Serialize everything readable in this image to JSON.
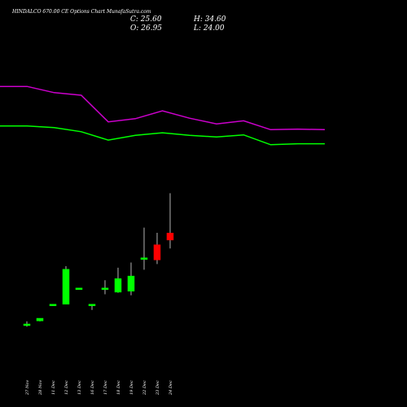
{
  "header": {
    "title": "HINDALCO 670.00  CE Options  Chart MunafaSutra.com",
    "close": "C: 25.60",
    "high": "H: 34.60",
    "open": "O: 26.95",
    "low": "L: 24.00"
  },
  "colors": {
    "background": "#000000",
    "up": "#00ff00",
    "down": "#ff0000",
    "upper_line": "#00ff00",
    "lower_line": "#cc00cc",
    "text": "#ffffff",
    "wick": "#ffffff"
  },
  "chart_data": [
    {
      "type": "line",
      "series": [
        {
          "values": [
            47.5,
            47.5,
            47.2,
            46.4,
            44.8,
            45.7,
            46.2,
            45.7,
            45.4,
            45.8,
            43.9,
            44.1,
            44.1
          ]
        },
        {
          "values": [
            55.1,
            55.1,
            53.9,
            53.4,
            48.3,
            48.9,
            50.4,
            49.0,
            47.9,
            48.5,
            46.8,
            46.9,
            46.8
          ]
        }
      ]
    },
    {
      "type": "candlestick",
      "categories": [
        "27 Nov",
        "28 Nov",
        "11 Dec",
        "12 Dec",
        "13 Dec",
        "16 Dec",
        "17 Dec",
        "18 Dec",
        "19 Dec",
        "22 Dec",
        "23 Dec",
        "24 Dec"
      ],
      "open": [
        9.5,
        10.1,
        13.3,
        13.3,
        16.4,
        13.0,
        16.1,
        15.6,
        15.8,
        22.0,
        24.7,
        26.95
      ],
      "high": [
        10.0,
        10.6,
        13.3,
        20.6,
        16.4,
        13.3,
        17.9,
        20.3,
        21.3,
        28.0,
        27.0,
        34.6
      ],
      "low": [
        9.0,
        10.0,
        13.3,
        13.3,
        16.4,
        12.2,
        15.2,
        15.5,
        15.0,
        19.9,
        21.0,
        24.0
      ],
      "close": [
        9.5,
        10.6,
        13.3,
        20.0,
        16.4,
        13.3,
        16.4,
        18.2,
        18.7,
        22.2,
        21.8,
        25.6
      ]
    }
  ]
}
